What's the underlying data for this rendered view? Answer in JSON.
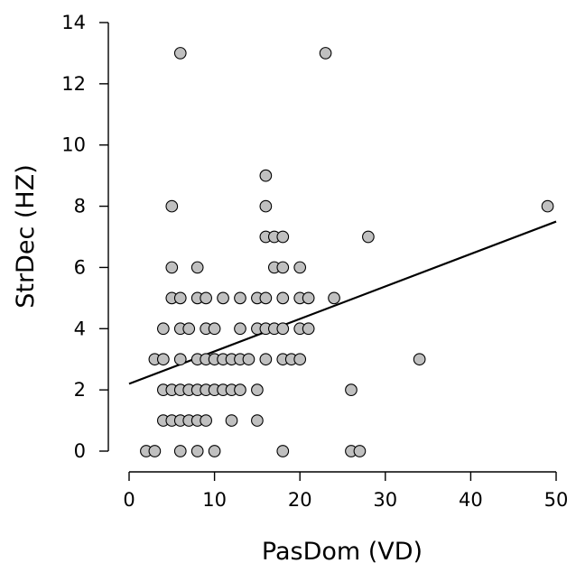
{
  "chart_data": {
    "type": "scatter",
    "xlabel": "PasDom (VD)",
    "ylabel": "StrDec (HZ)",
    "xlim": [
      0,
      50
    ],
    "ylim": [
      0,
      14
    ],
    "xticks": [
      "0",
      "10",
      "20",
      "30",
      "40",
      "50"
    ],
    "yticks": [
      "0",
      "2",
      "4",
      "6",
      "8",
      "10",
      "12",
      "14"
    ],
    "grid": false,
    "series": [
      {
        "points": [
          [
            2,
            0
          ],
          [
            3,
            0
          ],
          [
            6,
            0
          ],
          [
            8,
            0
          ],
          [
            10,
            0
          ],
          [
            18,
            0
          ],
          [
            26,
            0
          ],
          [
            27,
            0
          ],
          [
            4,
            1
          ],
          [
            5,
            1
          ],
          [
            6,
            1
          ],
          [
            7,
            1
          ],
          [
            8,
            1
          ],
          [
            9,
            1
          ],
          [
            12,
            1
          ],
          [
            15,
            1
          ],
          [
            4,
            2
          ],
          [
            5,
            2
          ],
          [
            6,
            2
          ],
          [
            7,
            2
          ],
          [
            8,
            2
          ],
          [
            9,
            2
          ],
          [
            10,
            2
          ],
          [
            11,
            2
          ],
          [
            12,
            2
          ],
          [
            13,
            2
          ],
          [
            15,
            2
          ],
          [
            26,
            2
          ],
          [
            3,
            3
          ],
          [
            4,
            3
          ],
          [
            6,
            3
          ],
          [
            8,
            3
          ],
          [
            9,
            3
          ],
          [
            10,
            3
          ],
          [
            11,
            3
          ],
          [
            12,
            3
          ],
          [
            13,
            3
          ],
          [
            14,
            3
          ],
          [
            16,
            3
          ],
          [
            18,
            3
          ],
          [
            19,
            3
          ],
          [
            20,
            3
          ],
          [
            34,
            3
          ],
          [
            4,
            4
          ],
          [
            6,
            4
          ],
          [
            7,
            4
          ],
          [
            9,
            4
          ],
          [
            10,
            4
          ],
          [
            13,
            4
          ],
          [
            15,
            4
          ],
          [
            16,
            4
          ],
          [
            17,
            4
          ],
          [
            18,
            4
          ],
          [
            20,
            4
          ],
          [
            21,
            4
          ],
          [
            5,
            5
          ],
          [
            6,
            5
          ],
          [
            8,
            5
          ],
          [
            9,
            5
          ],
          [
            11,
            5
          ],
          [
            13,
            5
          ],
          [
            15,
            5
          ],
          [
            16,
            5
          ],
          [
            18,
            5
          ],
          [
            20,
            5
          ],
          [
            21,
            5
          ],
          [
            24,
            5
          ],
          [
            5,
            6
          ],
          [
            8,
            6
          ],
          [
            17,
            6
          ],
          [
            18,
            6
          ],
          [
            20,
            6
          ],
          [
            16,
            7
          ],
          [
            17,
            7
          ],
          [
            18,
            7
          ],
          [
            28,
            7
          ],
          [
            5,
            8
          ],
          [
            16,
            8
          ],
          [
            49,
            8
          ],
          [
            16,
            9
          ],
          [
            6,
            13
          ],
          [
            23,
            13
          ]
        ]
      }
    ],
    "fit_line": {
      "x": [
        0,
        50
      ],
      "y": [
        2.2,
        7.5
      ]
    },
    "colors": {
      "point_fill": "#c0c0c0",
      "point_stroke": "#000000",
      "line": "#000000"
    }
  }
}
